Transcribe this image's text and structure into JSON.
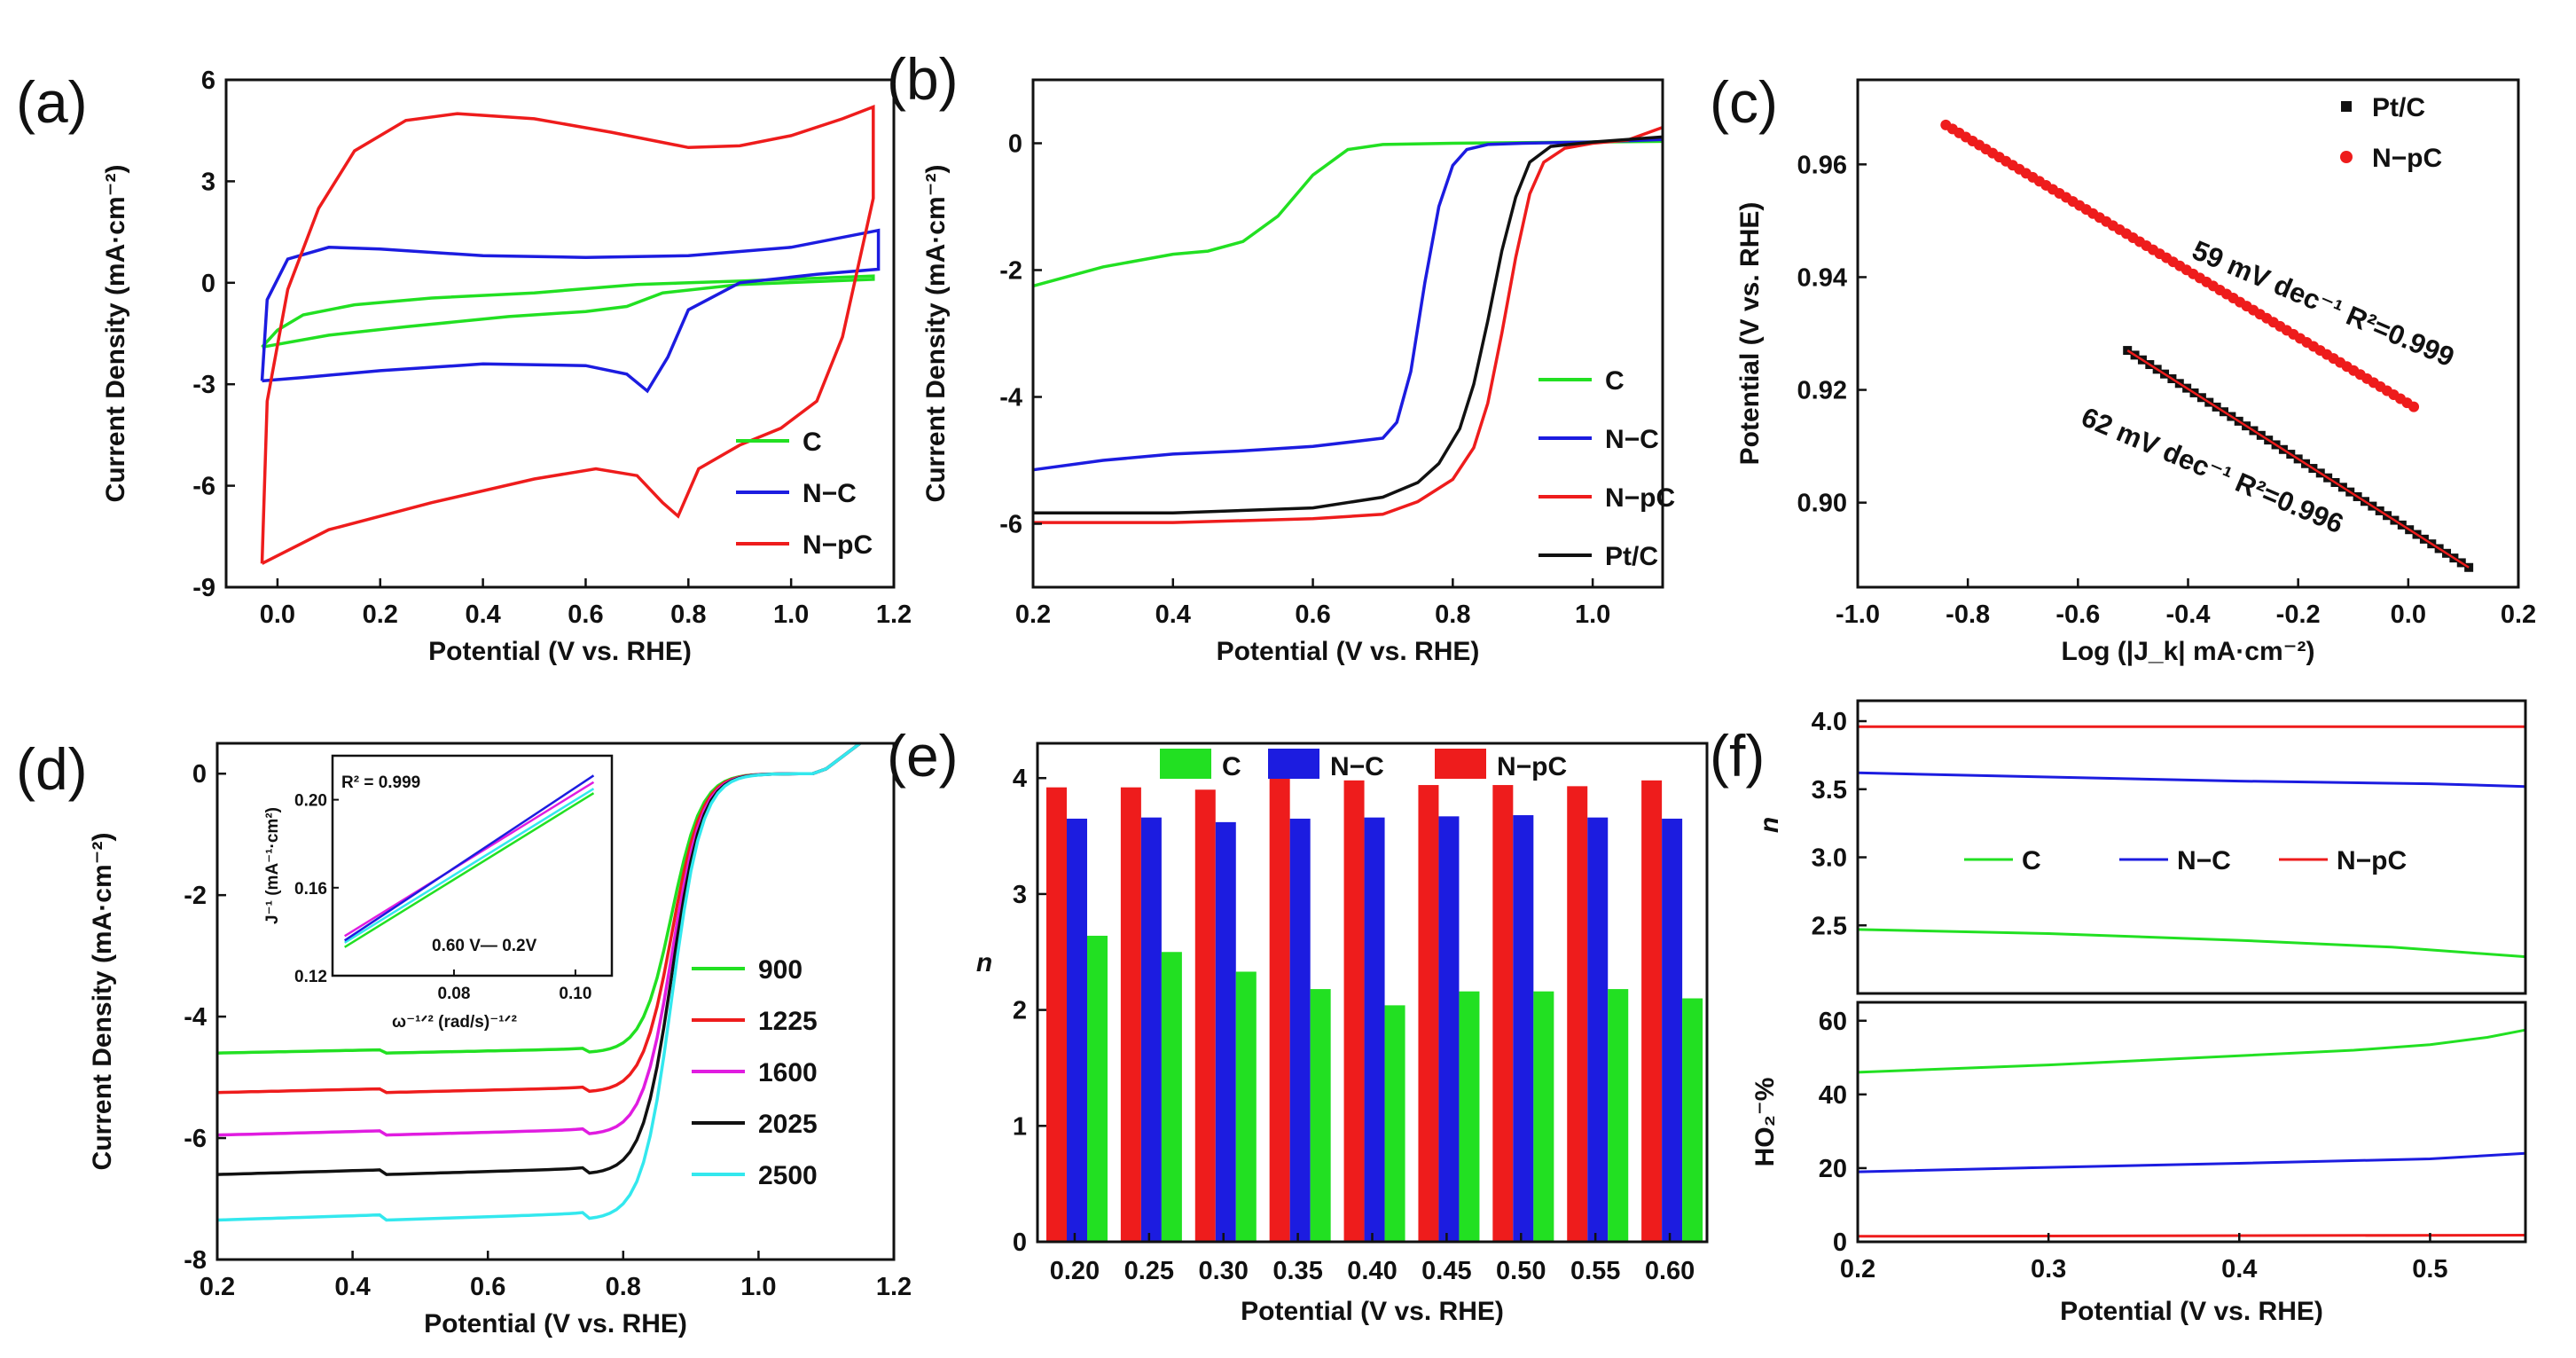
{
  "colors": {
    "C": "#22e022",
    "NC": "#1c1ce0",
    "NpC": "#ee1c1c",
    "PtC": "#111111",
    "c1225": "#ee1c1c",
    "c1600": "#e01ce0",
    "c2500": "#33e8ee"
  },
  "chart_data": [
    {
      "panel": "a",
      "type": "line",
      "panel_label": "(a)",
      "xlabel": "Potential (V vs. RHE)",
      "ylabel": "Current Density (mA·cm⁻²)",
      "xlim": [
        -0.1,
        1.2
      ],
      "ylim": [
        -9,
        6
      ],
      "xticks": [
        "0.0",
        "0.2",
        "0.4",
        "0.6",
        "0.8",
        "1.0",
        "1.2"
      ],
      "yticks": [
        "-9",
        "-6",
        "-3",
        "0",
        "3",
        "6"
      ],
      "legend": [
        "C",
        "N−C",
        "N−pC"
      ],
      "series": [
        {
          "name": "C",
          "color": "C",
          "points": [
            [
              -0.03,
              -1.9
            ],
            [
              0.0,
              -1.4
            ],
            [
              0.05,
              -0.95
            ],
            [
              0.15,
              -0.65
            ],
            [
              0.3,
              -0.45
            ],
            [
              0.5,
              -0.3
            ],
            [
              0.7,
              -0.05
            ],
            [
              0.9,
              0.05
            ],
            [
              1.16,
              0.2
            ],
            [
              1.16,
              0.1
            ],
            [
              0.9,
              -0.05
            ],
            [
              0.75,
              -0.3
            ],
            [
              0.68,
              -0.7
            ],
            [
              0.6,
              -0.85
            ],
            [
              0.45,
              -1.0
            ],
            [
              0.25,
              -1.3
            ],
            [
              0.1,
              -1.55
            ],
            [
              -0.03,
              -1.9
            ]
          ]
        },
        {
          "name": "N−C",
          "color": "NC",
          "points": [
            [
              -0.03,
              -2.9
            ],
            [
              -0.02,
              -0.5
            ],
            [
              0.02,
              0.7
            ],
            [
              0.1,
              1.05
            ],
            [
              0.2,
              1.0
            ],
            [
              0.4,
              0.8
            ],
            [
              0.6,
              0.75
            ],
            [
              0.8,
              0.8
            ],
            [
              1.0,
              1.05
            ],
            [
              1.17,
              1.55
            ],
            [
              1.17,
              0.4
            ],
            [
              1.05,
              0.25
            ],
            [
              0.9,
              0.0
            ],
            [
              0.8,
              -0.8
            ],
            [
              0.76,
              -2.2
            ],
            [
              0.72,
              -3.2
            ],
            [
              0.68,
              -2.7
            ],
            [
              0.6,
              -2.45
            ],
            [
              0.4,
              -2.4
            ],
            [
              0.2,
              -2.6
            ],
            [
              0.05,
              -2.8
            ],
            [
              -0.03,
              -2.9
            ]
          ]
        },
        {
          "name": "N−pC",
          "color": "NpC",
          "points": [
            [
              -0.03,
              -8.3
            ],
            [
              -0.02,
              -3.5
            ],
            [
              0.02,
              -0.2
            ],
            [
              0.08,
              2.2
            ],
            [
              0.15,
              3.9
            ],
            [
              0.25,
              4.8
            ],
            [
              0.35,
              5.0
            ],
            [
              0.5,
              4.85
            ],
            [
              0.65,
              4.45
            ],
            [
              0.8,
              4.0
            ],
            [
              0.9,
              4.05
            ],
            [
              1.0,
              4.35
            ],
            [
              1.1,
              4.85
            ],
            [
              1.16,
              5.2
            ],
            [
              1.16,
              2.5
            ],
            [
              1.1,
              -1.6
            ],
            [
              1.05,
              -3.5
            ],
            [
              0.98,
              -4.3
            ],
            [
              0.9,
              -4.8
            ],
            [
              0.82,
              -5.5
            ],
            [
              0.78,
              -6.9
            ],
            [
              0.75,
              -6.5
            ],
            [
              0.7,
              -5.7
            ],
            [
              0.62,
              -5.5
            ],
            [
              0.5,
              -5.8
            ],
            [
              0.3,
              -6.5
            ],
            [
              0.1,
              -7.3
            ],
            [
              -0.03,
              -8.3
            ]
          ]
        }
      ]
    },
    {
      "panel": "b",
      "type": "line",
      "panel_label": "(b)",
      "xlabel": "Potential (V vs. RHE)",
      "ylabel": "Current Density (mA·cm⁻²)",
      "xlim": [
        0.2,
        1.1
      ],
      "ylim": [
        -7,
        1
      ],
      "xticks": [
        "0.2",
        "0.4",
        "0.6",
        "0.8",
        "1.0"
      ],
      "yticks": [
        "-6",
        "-4",
        "-2",
        "0"
      ],
      "legend": [
        "C",
        "N−C",
        "N−pC",
        "Pt/C"
      ],
      "series": [
        {
          "name": "C",
          "color": "C",
          "points": [
            [
              0.2,
              -2.25
            ],
            [
              0.3,
              -1.95
            ],
            [
              0.4,
              -1.75
            ],
            [
              0.45,
              -1.7
            ],
            [
              0.5,
              -1.55
            ],
            [
              0.55,
              -1.15
            ],
            [
              0.6,
              -0.5
            ],
            [
              0.65,
              -0.1
            ],
            [
              0.7,
              -0.02
            ],
            [
              0.8,
              0
            ],
            [
              1.1,
              0.03
            ]
          ]
        },
        {
          "name": "N−C",
          "color": "NC",
          "points": [
            [
              0.2,
              -5.15
            ],
            [
              0.3,
              -5.0
            ],
            [
              0.4,
              -4.9
            ],
            [
              0.5,
              -4.85
            ],
            [
              0.6,
              -4.78
            ],
            [
              0.7,
              -4.65
            ],
            [
              0.72,
              -4.4
            ],
            [
              0.74,
              -3.6
            ],
            [
              0.76,
              -2.2
            ],
            [
              0.78,
              -1.0
            ],
            [
              0.8,
              -0.35
            ],
            [
              0.82,
              -0.1
            ],
            [
              0.85,
              -0.02
            ],
            [
              0.9,
              0
            ],
            [
              1.0,
              0.02
            ],
            [
              1.1,
              0.06
            ]
          ]
        },
        {
          "name": "N−pC",
          "color": "NpC",
          "points": [
            [
              0.2,
              -5.98
            ],
            [
              0.4,
              -5.98
            ],
            [
              0.6,
              -5.92
            ],
            [
              0.7,
              -5.85
            ],
            [
              0.75,
              -5.65
            ],
            [
              0.8,
              -5.3
            ],
            [
              0.83,
              -4.8
            ],
            [
              0.85,
              -4.1
            ],
            [
              0.87,
              -3.0
            ],
            [
              0.89,
              -1.8
            ],
            [
              0.91,
              -0.8
            ],
            [
              0.93,
              -0.3
            ],
            [
              0.96,
              -0.08
            ],
            [
              1.0,
              0
            ],
            [
              1.05,
              0.05
            ],
            [
              1.1,
              0.25
            ]
          ]
        },
        {
          "name": "Pt/C",
          "color": "PtC",
          "points": [
            [
              0.2,
              -5.83
            ],
            [
              0.4,
              -5.83
            ],
            [
              0.6,
              -5.75
            ],
            [
              0.7,
              -5.58
            ],
            [
              0.75,
              -5.35
            ],
            [
              0.78,
              -5.05
            ],
            [
              0.81,
              -4.5
            ],
            [
              0.83,
              -3.8
            ],
            [
              0.85,
              -2.8
            ],
            [
              0.87,
              -1.7
            ],
            [
              0.89,
              -0.85
            ],
            [
              0.91,
              -0.3
            ],
            [
              0.94,
              -0.05
            ],
            [
              1.0,
              0.02
            ],
            [
              1.1,
              0.1
            ]
          ]
        }
      ]
    },
    {
      "panel": "c",
      "type": "scatter",
      "panel_label": "(c)",
      "xlabel": "Log (|J_k| mA·cm⁻²)",
      "ylabel": "Potential (V vs. RHE)",
      "xlim": [
        -1.0,
        0.2
      ],
      "ylim": [
        0.885,
        0.975
      ],
      "xticks": [
        "-1.0",
        "-0.8",
        "-0.6",
        "-0.4",
        "-0.2",
        "0.0",
        "0.2"
      ],
      "yticks": [
        "0.90",
        "0.92",
        "0.94",
        "0.96"
      ],
      "legend": [
        "Pt/C",
        "N−pC"
      ],
      "annotations": [
        "59 mV dec⁻¹  R²=0.999",
        "62 mV dec⁻¹  R²=0.996"
      ],
      "series": [
        {
          "name": "Pt/C",
          "color": "PtC",
          "x_range": [
            -0.51,
            0.11
          ],
          "fit": {
            "x0": -0.51,
            "y0": 0.927,
            "x1": 0.11,
            "y1": 0.8885
          }
        },
        {
          "name": "N−pC",
          "color": "NpC",
          "x_range": [
            -0.84,
            0.01
          ],
          "fit": {
            "x0": -0.84,
            "y0": 0.967,
            "x1": 0.01,
            "y1": 0.917
          }
        }
      ]
    },
    {
      "panel": "d",
      "type": "line",
      "panel_label": "(d)",
      "xlabel": "Potential (V vs. RHE)",
      "ylabel": "Current Density (mA·cm⁻²)",
      "xlim": [
        0.2,
        1.2
      ],
      "ylim": [
        -8,
        0.5
      ],
      "xticks": [
        "0.2",
        "0.4",
        "0.6",
        "0.8",
        "1.0",
        "1.2"
      ],
      "yticks": [
        "-8",
        "-6",
        "-4",
        "-2",
        "0"
      ],
      "legend": [
        "900",
        "1225",
        "1600",
        "2025",
        "2500"
      ],
      "limits": [
        -4.6,
        -5.25,
        -5.95,
        -6.6,
        -7.35
      ],
      "series_colors": [
        "C",
        "c1225",
        "c1600",
        "PtC",
        "c2500"
      ],
      "inset": {
        "xlabel": "ω⁻¹ᐟ² (rad/s)⁻¹ᐟ²",
        "ylabel": "J⁻¹ (mA⁻¹·cm²)",
        "xlim": [
          0.06,
          0.106
        ],
        "ylim": [
          0.12,
          0.22
        ],
        "xticks": [
          "0.08",
          "0.10"
        ],
        "yticks": [
          "0.12",
          "0.16",
          "0.20"
        ],
        "annotation": "R² = 0.999",
        "legend_text": "0.60 V— 0.2V",
        "lines": [
          [
            0.062,
            0.135,
            0.103,
            0.205
          ],
          [
            0.062,
            0.138,
            0.103,
            0.208
          ],
          [
            0.062,
            0.136,
            0.103,
            0.211
          ],
          [
            0.062,
            0.133,
            0.103,
            0.203
          ]
        ]
      }
    },
    {
      "panel": "e",
      "type": "bar",
      "panel_label": "(e)",
      "xlabel": "Potential (V vs. RHE)",
      "ylabel": "n",
      "categories": [
        "0.20",
        "0.25",
        "0.30",
        "0.35",
        "0.40",
        "0.45",
        "0.50",
        "0.55",
        "0.60"
      ],
      "ylim": [
        0,
        4.3
      ],
      "yticks": [
        "0",
        "1",
        "2",
        "3",
        "4"
      ],
      "legend": [
        "C",
        "N−C",
        "N−pC"
      ],
      "series": [
        {
          "name": "N−pC",
          "color": "NpC",
          "values": [
            3.92,
            3.92,
            3.9,
            4.0,
            3.98,
            3.94,
            3.94,
            3.93,
            3.98
          ]
        },
        {
          "name": "N−C",
          "color": "NC",
          "values": [
            3.65,
            3.66,
            3.62,
            3.65,
            3.66,
            3.67,
            3.68,
            3.66,
            3.65
          ]
        },
        {
          "name": "C",
          "color": "C",
          "values": [
            2.64,
            2.5,
            2.33,
            2.18,
            2.04,
            2.16,
            2.16,
            2.18,
            2.1
          ]
        }
      ]
    },
    {
      "panel": "f",
      "type": "line",
      "panel_label": "(f)",
      "xlabel": "Potential (V vs. RHE)",
      "xlim": [
        0.2,
        0.55
      ],
      "xticks": [
        "0.2",
        "0.3",
        "0.4",
        "0.5"
      ],
      "top": {
        "ylabel": "n",
        "ylim": [
          2.0,
          4.15
        ],
        "yticks": [
          "2.5",
          "3.0",
          "3.5",
          "4.0"
        ],
        "legend": [
          "C",
          "N−C",
          "N−pC"
        ],
        "series": [
          {
            "name": "N−pC",
            "color": "NpC",
            "points": [
              [
                0.2,
                3.96
              ],
              [
                0.55,
                3.96
              ]
            ]
          },
          {
            "name": "N−C",
            "color": "NC",
            "points": [
              [
                0.2,
                3.62
              ],
              [
                0.3,
                3.59
              ],
              [
                0.4,
                3.56
              ],
              [
                0.5,
                3.54
              ],
              [
                0.55,
                3.52
              ]
            ]
          },
          {
            "name": "C",
            "color": "C",
            "points": [
              [
                0.2,
                2.47
              ],
              [
                0.3,
                2.44
              ],
              [
                0.4,
                2.39
              ],
              [
                0.48,
                2.34
              ],
              [
                0.52,
                2.3
              ],
              [
                0.55,
                2.27
              ]
            ]
          }
        ]
      },
      "bottom": {
        "ylabel": "HO₂⁻%",
        "ylim": [
          0,
          65
        ],
        "yticks": [
          "0",
          "20",
          "40",
          "60"
        ],
        "series": [
          {
            "name": "C",
            "color": "C",
            "points": [
              [
                0.2,
                46
              ],
              [
                0.3,
                48
              ],
              [
                0.4,
                50.5
              ],
              [
                0.46,
                52
              ],
              [
                0.5,
                53.5
              ],
              [
                0.53,
                55.5
              ],
              [
                0.55,
                57.5
              ]
            ]
          },
          {
            "name": "N−C",
            "color": "NC",
            "points": [
              [
                0.2,
                19
              ],
              [
                0.3,
                20.2
              ],
              [
                0.4,
                21.3
              ],
              [
                0.5,
                22.5
              ],
              [
                0.55,
                24
              ]
            ]
          },
          {
            "name": "N−pC",
            "color": "NpC",
            "points": [
              [
                0.2,
                1.5
              ],
              [
                0.55,
                1.8
              ]
            ]
          }
        ]
      }
    }
  ]
}
